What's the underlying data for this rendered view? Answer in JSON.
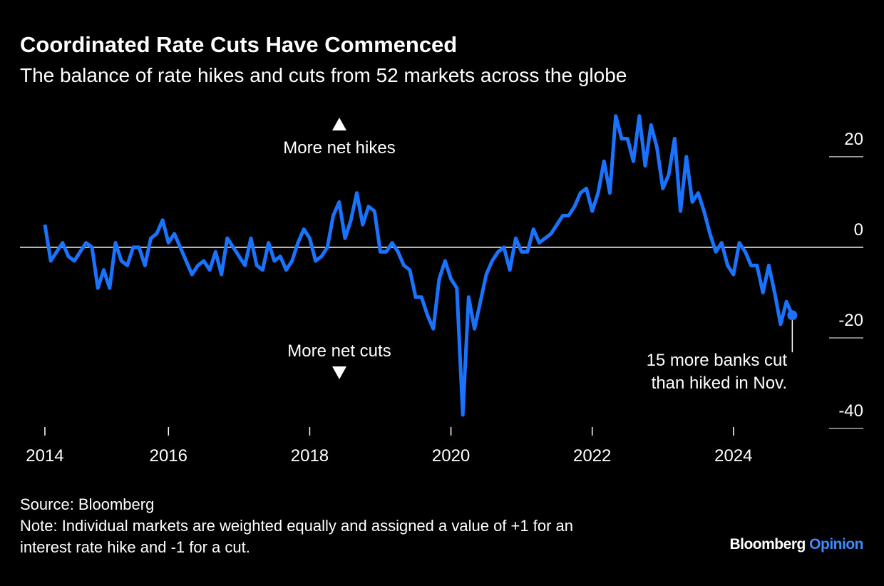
{
  "chart_data": {
    "type": "line",
    "title": "Coordinated Rate Cuts Have Commenced",
    "subtitle": "The balance of rate hikes and cuts from 52 markets across the globe",
    "x": [
      2014.25,
      2014.333,
      2014.417,
      2014.5,
      2014.583,
      2014.667,
      2014.75,
      2014.833,
      2014.917,
      2015,
      2015.083,
      2015.167,
      2015.25,
      2015.333,
      2015.417,
      2015.5,
      2015.583,
      2015.667,
      2015.75,
      2015.833,
      2015.917,
      2016,
      2016.083,
      2016.167,
      2016.25,
      2016.333,
      2016.417,
      2016.5,
      2016.583,
      2016.667,
      2016.75,
      2016.833,
      2016.917,
      2017,
      2017.083,
      2017.167,
      2017.25,
      2017.333,
      2017.417,
      2017.5,
      2017.583,
      2017.667,
      2017.75,
      2017.833,
      2017.917,
      2018,
      2018.083,
      2018.167,
      2018.25,
      2018.333,
      2018.417,
      2018.5,
      2018.583,
      2018.667,
      2018.75,
      2018.833,
      2018.917,
      2019,
      2019.083,
      2019.167,
      2019.25,
      2019.333,
      2019.417,
      2019.5,
      2019.583,
      2019.667,
      2019.75,
      2019.833,
      2019.917,
      2020,
      2020.083,
      2020.167,
      2020.25,
      2020.333,
      2020.417,
      2020.5,
      2020.583,
      2020.667,
      2020.75,
      2020.833,
      2020.917,
      2021,
      2021.083,
      2021.167,
      2021.25,
      2021.333,
      2021.417,
      2021.5,
      2021.583,
      2021.667,
      2021.75,
      2021.833,
      2021.917,
      2022,
      2022.083,
      2022.167,
      2022.25,
      2022.333,
      2022.417,
      2022.5,
      2022.583,
      2022.667,
      2022.75,
      2022.833,
      2022.917,
      2023,
      2023.083,
      2023.167,
      2023.25,
      2023.333,
      2023.417,
      2023.5,
      2023.583,
      2023.667,
      2023.75,
      2023.833,
      2023.917,
      2024,
      2024.083,
      2024.167,
      2024.25,
      2024.333,
      2024.417,
      2024.5,
      2024.583,
      2024.667,
      2024.75,
      2024.833
    ],
    "values": [
      5,
      -3,
      -1,
      1,
      -2,
      -3,
      -1,
      1,
      0,
      -9,
      -5,
      -9,
      1,
      -3,
      -4,
      0,
      0,
      -4,
      2,
      3,
      6,
      1,
      3,
      0,
      -3,
      -6,
      -4,
      -3,
      -5,
      -1,
      -6,
      2,
      0,
      -2,
      -4,
      2,
      -4,
      -5,
      1,
      -3,
      -2,
      -5,
      -3,
      1,
      4,
      2,
      -3,
      -2,
      0,
      7,
      10,
      2,
      6,
      12,
      5,
      9,
      8,
      -1,
      -1,
      1,
      -1,
      -4,
      -5,
      -11,
      -11,
      -15,
      -18,
      -7,
      -3,
      -7,
      -9,
      -37,
      -11,
      -18,
      -12,
      -6,
      -3,
      -1,
      0,
      -5,
      2,
      -1,
      -1,
      4,
      1,
      2,
      3,
      5,
      7,
      7,
      9,
      12,
      13,
      8,
      12,
      19,
      12,
      29,
      24,
      24,
      19,
      29,
      18,
      27,
      22,
      13,
      16,
      24,
      8,
      20,
      10,
      12,
      8,
      3,
      -1,
      1,
      -4,
      -6,
      1,
      -1,
      -4,
      -4,
      -10,
      -4,
      -10,
      -17,
      -12,
      -15
    ],
    "color": "#1a73ff",
    "xlim": [
      2014.2,
      2024.9
    ],
    "xticks": [
      {
        "value": 2014.25,
        "label": "2014"
      },
      2016,
      2018,
      2020,
      2022,
      2024
    ],
    "ylim": [
      -40,
      31
    ],
    "yticks": [
      20,
      0,
      -20,
      -40
    ],
    "annotations": {
      "up": "More net hikes",
      "down": "More net cuts",
      "callout": [
        "15 more banks cut",
        "than hiked in Nov."
      ]
    },
    "source": "Source: Bloomberg",
    "note": [
      "Note: Individual markets are weighted equally and assigned a value of +1 for an",
      "interest rate hike and -1 for a cut."
    ],
    "logo": {
      "brand": "Bloomberg",
      "section": "Opinion"
    }
  }
}
